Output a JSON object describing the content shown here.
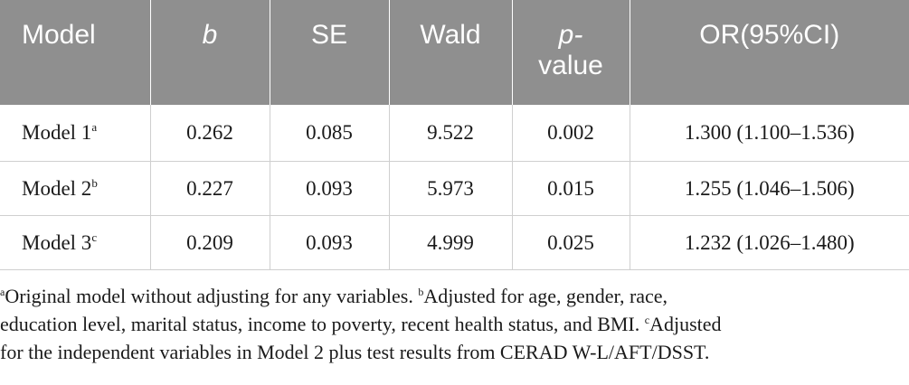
{
  "table": {
    "headers": {
      "model": "Model",
      "b": "b",
      "se": "SE",
      "wald": "Wald",
      "p_line1": "p-",
      "p_line2": "value",
      "or": "OR(95%CI)"
    },
    "rows": [
      {
        "model": "Model 1",
        "sup": "a",
        "b": "0.262",
        "se": "0.085",
        "wald": "9.522",
        "p": "0.002",
        "or": "1.300 (1.100–1.536)"
      },
      {
        "model": "Model 2",
        "sup": "b",
        "b": "0.227",
        "se": "0.093",
        "wald": "5.973",
        "p": "0.015",
        "or": "1.255 (1.046–1.506)"
      },
      {
        "model": "Model 3",
        "sup": "c",
        "b": "0.209",
        "se": "0.093",
        "wald": "4.999",
        "p": "0.025",
        "or": "1.232 (1.026–1.480)"
      }
    ]
  },
  "footnotes": {
    "a_mark": "a",
    "a_text": "Original model without adjusting for any variables.",
    "b_mark": "b",
    "b_text_1": "Adjusted for age, gender, race,",
    "b_text_2": "education level, marital status, income to poverty, recent health status, and BMI.",
    "c_mark": "c",
    "c_text_1": "Adjusted",
    "c_text_2": "for the independent variables in Model 2 plus test results from CERAD W-L/AFT/DSST."
  }
}
